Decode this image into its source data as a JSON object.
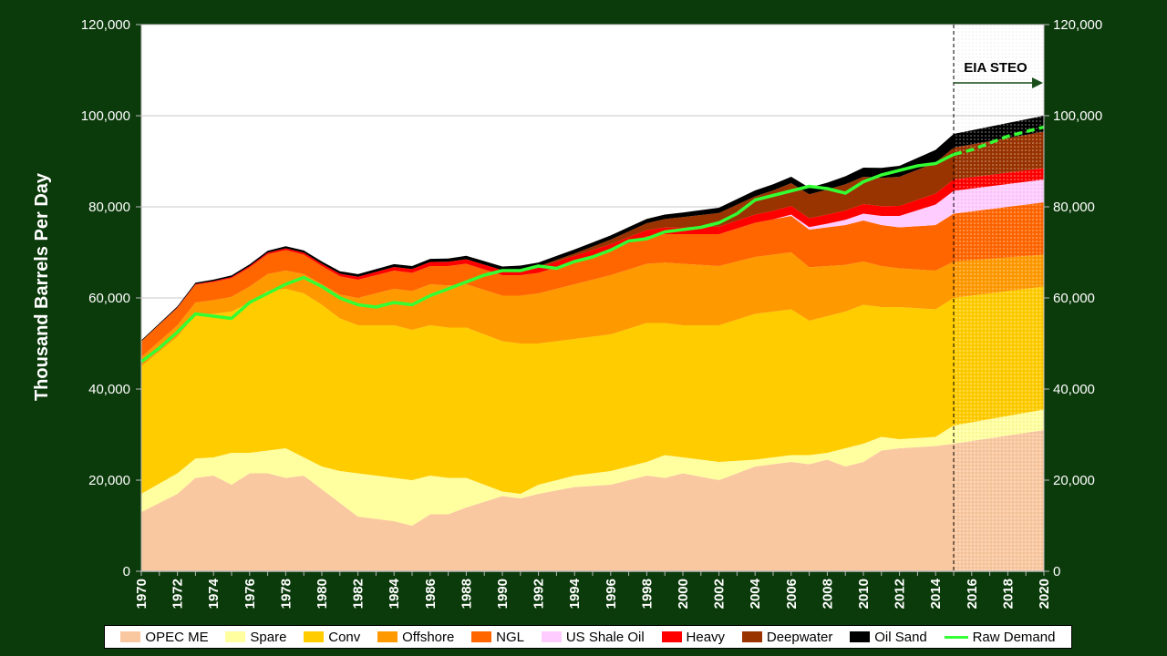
{
  "chart_data": {
    "type": "area",
    "ylabel": "Thousand Barrels Per Day",
    "ylim": [
      0,
      120000
    ],
    "ytick_labels": [
      "0",
      "20,000",
      "40,000",
      "60,000",
      "80,000",
      "100,000",
      "120,000"
    ],
    "yticks": [
      0,
      20000,
      40000,
      60000,
      80000,
      100000,
      120000
    ],
    "xlim": [
      1970,
      2020
    ],
    "xticks": [
      1970,
      1972,
      1974,
      1976,
      1978,
      1980,
      1982,
      1984,
      1986,
      1988,
      1990,
      1992,
      1994,
      1996,
      1998,
      2000,
      2002,
      2004,
      2006,
      2008,
      2010,
      2012,
      2014,
      2016,
      2018,
      2020
    ],
    "xtick_labels": [
      "1970",
      "1972",
      "1974",
      "1976",
      "1978",
      "1980",
      "1982",
      "1984",
      "1986",
      "1988",
      "1990",
      "1992",
      "1994",
      "1996",
      "1998",
      "2000",
      "2002",
      "2004",
      "2006",
      "2008",
      "2010",
      "2012",
      "2014",
      "2016",
      "2018",
      "2020"
    ],
    "forecast_start": 2015,
    "annotation": "EIA STEO",
    "grid": "horizontal",
    "legend_position": "bottom",
    "series": [
      {
        "name": "OPEC ME",
        "color": "#fac8a0",
        "anchors": [
          [
            1970,
            13000
          ],
          [
            1972,
            17000
          ],
          [
            1973,
            20500
          ],
          [
            1974,
            21000
          ],
          [
            1975,
            19000
          ],
          [
            1976,
            21500
          ],
          [
            1977,
            21500
          ],
          [
            1978,
            20500
          ],
          [
            1979,
            21000
          ],
          [
            1980,
            18000
          ],
          [
            1981,
            15000
          ],
          [
            1982,
            12000
          ],
          [
            1984,
            11000
          ],
          [
            1985,
            10000
          ],
          [
            1986,
            12500
          ],
          [
            1987,
            12500
          ],
          [
            1988,
            14000
          ],
          [
            1990,
            16500
          ],
          [
            1991,
            16000
          ],
          [
            1992,
            17000
          ],
          [
            1994,
            18500
          ],
          [
            1996,
            19000
          ],
          [
            1998,
            21000
          ],
          [
            1999,
            20500
          ],
          [
            2000,
            21500
          ],
          [
            2002,
            20000
          ],
          [
            2004,
            23000
          ],
          [
            2006,
            24000
          ],
          [
            2007,
            23500
          ],
          [
            2008,
            24500
          ],
          [
            2009,
            23000
          ],
          [
            2010,
            24000
          ],
          [
            2011,
            26500
          ],
          [
            2012,
            27000
          ],
          [
            2014,
            27500
          ],
          [
            2015,
            28000
          ],
          [
            2020,
            31000
          ]
        ]
      },
      {
        "name": "Spare",
        "color": "#ffffa0",
        "anchors": [
          [
            1970,
            4000
          ],
          [
            1972,
            4500
          ],
          [
            1974,
            4000
          ],
          [
            1975,
            7000
          ],
          [
            1976,
            4500
          ],
          [
            1977,
            5000
          ],
          [
            1978,
            6500
          ],
          [
            1979,
            4000
          ],
          [
            1980,
            5000
          ],
          [
            1981,
            7000
          ],
          [
            1982,
            9500
          ],
          [
            1984,
            9500
          ],
          [
            1985,
            10000
          ],
          [
            1986,
            8500
          ],
          [
            1987,
            8000
          ],
          [
            1988,
            6500
          ],
          [
            1990,
            1000
          ],
          [
            1991,
            1000
          ],
          [
            1992,
            2000
          ],
          [
            1994,
            2500
          ],
          [
            1996,
            3000
          ],
          [
            1998,
            3000
          ],
          [
            1999,
            5000
          ],
          [
            2000,
            3500
          ],
          [
            2002,
            4000
          ],
          [
            2004,
            1500
          ],
          [
            2006,
            1500
          ],
          [
            2007,
            2000
          ],
          [
            2008,
            1500
          ],
          [
            2009,
            4000
          ],
          [
            2010,
            4000
          ],
          [
            2011,
            3000
          ],
          [
            2012,
            2000
          ],
          [
            2014,
            2000
          ],
          [
            2015,
            4000
          ],
          [
            2020,
            4500
          ]
        ]
      },
      {
        "name": "Conv",
        "color": "#ffcc00",
        "anchors": [
          [
            1970,
            28000
          ],
          [
            1972,
            30000
          ],
          [
            1973,
            31500
          ],
          [
            1974,
            31500
          ],
          [
            1975,
            31000
          ],
          [
            1976,
            33000
          ],
          [
            1977,
            35000
          ],
          [
            1978,
            35000
          ],
          [
            1979,
            36000
          ],
          [
            1980,
            35500
          ],
          [
            1981,
            33500
          ],
          [
            1982,
            32500
          ],
          [
            1984,
            33500
          ],
          [
            1985,
            33000
          ],
          [
            1986,
            33000
          ],
          [
            1987,
            33000
          ],
          [
            1988,
            33000
          ],
          [
            1990,
            33000
          ],
          [
            1991,
            33000
          ],
          [
            1992,
            31000
          ],
          [
            1994,
            30000
          ],
          [
            1996,
            30000
          ],
          [
            1998,
            30500
          ],
          [
            1999,
            29000
          ],
          [
            2000,
            29000
          ],
          [
            2002,
            30000
          ],
          [
            2004,
            32000
          ],
          [
            2006,
            32000
          ],
          [
            2007,
            29500
          ],
          [
            2008,
            30000
          ],
          [
            2009,
            30000
          ],
          [
            2010,
            30500
          ],
          [
            2011,
            28500
          ],
          [
            2012,
            29000
          ],
          [
            2014,
            28000
          ],
          [
            2015,
            28000
          ],
          [
            2020,
            27000
          ]
        ]
      },
      {
        "name": "Offshore",
        "color": "#ff9900",
        "anchors": [
          [
            1970,
            2000
          ],
          [
            1972,
            2500
          ],
          [
            1974,
            3000
          ],
          [
            1976,
            3500
          ],
          [
            1978,
            4000
          ],
          [
            1980,
            4500
          ],
          [
            1982,
            6000
          ],
          [
            1984,
            8000
          ],
          [
            1986,
            9000
          ],
          [
            1988,
            9500
          ],
          [
            1990,
            10000
          ],
          [
            1992,
            11000
          ],
          [
            1994,
            12000
          ],
          [
            1996,
            13000
          ],
          [
            1998,
            13000
          ],
          [
            2000,
            13500
          ],
          [
            2002,
            13000
          ],
          [
            2004,
            12500
          ],
          [
            2006,
            12500
          ],
          [
            2008,
            11000
          ],
          [
            2010,
            9500
          ],
          [
            2012,
            8500
          ],
          [
            2014,
            8500
          ],
          [
            2015,
            8000
          ],
          [
            2020,
            7000
          ]
        ]
      },
      {
        "name": "NGL",
        "color": "#ff6600",
        "anchors": [
          [
            1970,
            3500
          ],
          [
            1972,
            3800
          ],
          [
            1974,
            4000
          ],
          [
            1976,
            4200
          ],
          [
            1978,
            4500
          ],
          [
            1980,
            4000
          ],
          [
            1982,
            4000
          ],
          [
            1984,
            4000
          ],
          [
            1986,
            4000
          ],
          [
            1988,
            4500
          ],
          [
            1990,
            4500
          ],
          [
            1992,
            4500
          ],
          [
            1994,
            5000
          ],
          [
            1996,
            5500
          ],
          [
            1998,
            6000
          ],
          [
            2000,
            6500
          ],
          [
            2002,
            7000
          ],
          [
            2004,
            7500
          ],
          [
            2006,
            8000
          ],
          [
            2008,
            8500
          ],
          [
            2010,
            9000
          ],
          [
            2012,
            9000
          ],
          [
            2014,
            10000
          ],
          [
            2015,
            10500
          ],
          [
            2020,
            11500
          ]
        ]
      },
      {
        "name": "US Shale Oil",
        "color": "#ffccff",
        "anchors": [
          [
            1970,
            0
          ],
          [
            2005,
            0
          ],
          [
            2006,
            300
          ],
          [
            2008,
            800
          ],
          [
            2010,
            1500
          ],
          [
            2012,
            2500
          ],
          [
            2014,
            4500
          ],
          [
            2015,
            5000
          ],
          [
            2020,
            5000
          ]
        ]
      },
      {
        "name": "Heavy",
        "color": "#ff0000",
        "anchors": [
          [
            1970,
            0
          ],
          [
            1980,
            500
          ],
          [
            1984,
            800
          ],
          [
            1988,
            1000
          ],
          [
            1992,
            1200
          ],
          [
            1996,
            1300
          ],
          [
            2000,
            1500
          ],
          [
            2004,
            1800
          ],
          [
            2008,
            2000
          ],
          [
            2012,
            2200
          ],
          [
            2015,
            2500
          ],
          [
            2020,
            2500
          ]
        ]
      },
      {
        "name": "Deepwater",
        "color": "#993300",
        "anchors": [
          [
            1970,
            0
          ],
          [
            1990,
            0
          ],
          [
            1994,
            500
          ],
          [
            1998,
            1500
          ],
          [
            2002,
            3000
          ],
          [
            2006,
            5000
          ],
          [
            2010,
            6000
          ],
          [
            2015,
            7000
          ],
          [
            2020,
            8000
          ]
        ]
      },
      {
        "name": "Oil Sand",
        "color": "#000000",
        "anchors": [
          [
            1970,
            200
          ],
          [
            1980,
            500
          ],
          [
            1990,
            800
          ],
          [
            2000,
            1000
          ],
          [
            2004,
            1300
          ],
          [
            2008,
            1500
          ],
          [
            2010,
            2000
          ],
          [
            2015,
            3000
          ],
          [
            2020,
            3500
          ]
        ]
      }
    ],
    "line_series": {
      "name": "Raw Demand",
      "color": "#33ff33",
      "x": [
        1970,
        1971,
        1972,
        1973,
        1974,
        1975,
        1976,
        1977,
        1978,
        1979,
        1980,
        1981,
        1982,
        1983,
        1984,
        1985,
        1986,
        1987,
        1988,
        1989,
        1990,
        1991,
        1992,
        1993,
        1994,
        1995,
        1996,
        1997,
        1998,
        1999,
        2000,
        2001,
        2002,
        2003,
        2004,
        2005,
        2006,
        2007,
        2008,
        2009,
        2010,
        2011,
        2012,
        2013,
        2014,
        2015,
        2016,
        2017,
        2018,
        2019,
        2020
      ],
      "values": [
        46000,
        49000,
        52500,
        56500,
        56000,
        55500,
        59000,
        61000,
        63000,
        64500,
        62500,
        60000,
        58500,
        58000,
        59000,
        58500,
        60500,
        62000,
        63500,
        65000,
        66000,
        66000,
        67000,
        66500,
        68000,
        69000,
        70500,
        72500,
        73000,
        74500,
        75000,
        75500,
        76500,
        78500,
        81500,
        82500,
        83500,
        84500,
        84000,
        83000,
        85500,
        87000,
        88000,
        89000,
        89500,
        91500,
        92500,
        94000,
        95500,
        96500,
        97500
      ]
    }
  }
}
